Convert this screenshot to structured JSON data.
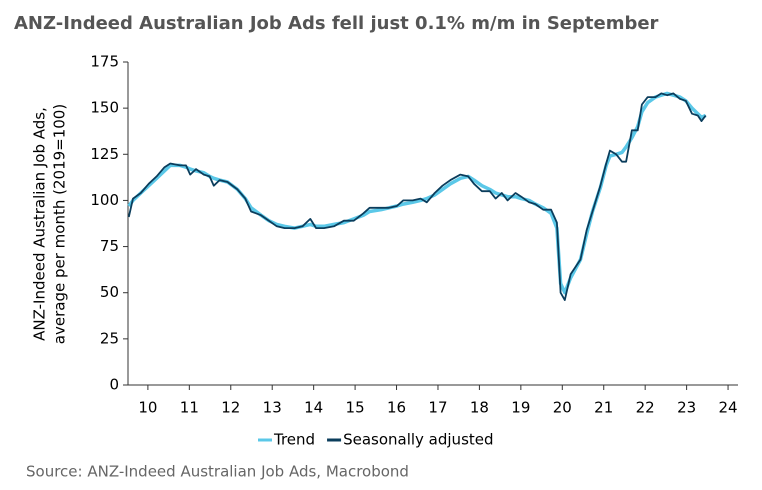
{
  "chart_data": {
    "type": "line",
    "title": "ANZ-Indeed Australian Job Ads fell just 0.1% m/m in September",
    "y_label": [
      "ANZ-Indeed Australian Job Ads,",
      "average per month (2019=100)"
    ],
    "source": "Source: ANZ-Indeed Australian Job Ads, Macrobond",
    "x": [
      9.54,
      9.64,
      9.83,
      10.02,
      10.21,
      10.4,
      10.54,
      10.78,
      10.92,
      11.02,
      11.16,
      11.35,
      11.49,
      11.59,
      11.73,
      11.92,
      12.16,
      12.35,
      12.49,
      12.73,
      12.92,
      13.11,
      13.3,
      13.54,
      13.73,
      13.92,
      14.06,
      14.25,
      14.49,
      14.73,
      14.97,
      15.2,
      15.35,
      15.63,
      15.82,
      16.01,
      16.16,
      16.39,
      16.58,
      16.73,
      16.92,
      17.11,
      17.3,
      17.54,
      17.73,
      17.87,
      18.06,
      18.25,
      18.39,
      18.54,
      18.68,
      18.87,
      19.01,
      19.2,
      19.35,
      19.54,
      19.73,
      19.87,
      19.96,
      20.06,
      20.2,
      20.44,
      20.59,
      20.73,
      20.92,
      21.06,
      21.15,
      21.3,
      21.44,
      21.54,
      21.68,
      21.82,
      21.92,
      22.06,
      22.25,
      22.39,
      22.53,
      22.68,
      22.84,
      22.98,
      23.13,
      23.27,
      23.36,
      23.46
    ],
    "series": [
      {
        "name": "Trend",
        "color": "#5bc8e8",
        "width": 3.5,
        "values": [
          97,
          100,
          104,
          108,
          112,
          116,
          119,
          119,
          118,
          117,
          116,
          115,
          113,
          112,
          111,
          110,
          106,
          101,
          96,
          92,
          89,
          87,
          86,
          85,
          86,
          87,
          86,
          86,
          87,
          88,
          90,
          92,
          94,
          95,
          96,
          97,
          98,
          99,
          100,
          101,
          103,
          106,
          109,
          112,
          113,
          111,
          108,
          106,
          104,
          103,
          102,
          102,
          101,
          100,
          98,
          96,
          93,
          85,
          55,
          50,
          58,
          68,
          82,
          94,
          107,
          119,
          124,
          125,
          126,
          129,
          134,
          140,
          148,
          153,
          156,
          157,
          158,
          157,
          156,
          154,
          150,
          147,
          145,
          146
        ]
      },
      {
        "name": "Seasonally adjusted",
        "color": "#0b3d5c",
        "width": 1.8,
        "values": [
          91,
          101,
          104,
          109,
          113,
          118,
          120,
          119,
          119,
          114,
          117,
          114,
          113,
          108,
          111,
          110,
          106,
          101,
          94,
          92,
          89,
          86,
          85,
          85,
          86,
          90,
          85,
          85,
          86,
          89,
          89,
          93,
          96,
          96,
          96,
          97,
          100,
          100,
          101,
          99,
          104,
          108,
          111,
          114,
          113,
          109,
          105,
          105,
          101,
          104,
          100,
          104,
          102,
          99,
          98,
          95,
          95,
          88,
          50,
          46,
          60,
          68,
          84,
          94,
          108,
          120,
          127,
          125,
          121,
          121,
          138,
          138,
          152,
          156,
          156,
          158,
          157,
          158,
          155,
          154,
          147,
          146,
          143,
          146
        ]
      }
    ],
    "xlim": [
      9.52,
      24.24
    ],
    "xticks": [
      10,
      11,
      12,
      13,
      14,
      15,
      16,
      17,
      18,
      19,
      20,
      21,
      22,
      23,
      24
    ],
    "ylim": [
      0,
      175
    ],
    "yticks": [
      0,
      25,
      50,
      75,
      100,
      125,
      150,
      175
    ],
    "legend": "bottom",
    "grid": false
  }
}
